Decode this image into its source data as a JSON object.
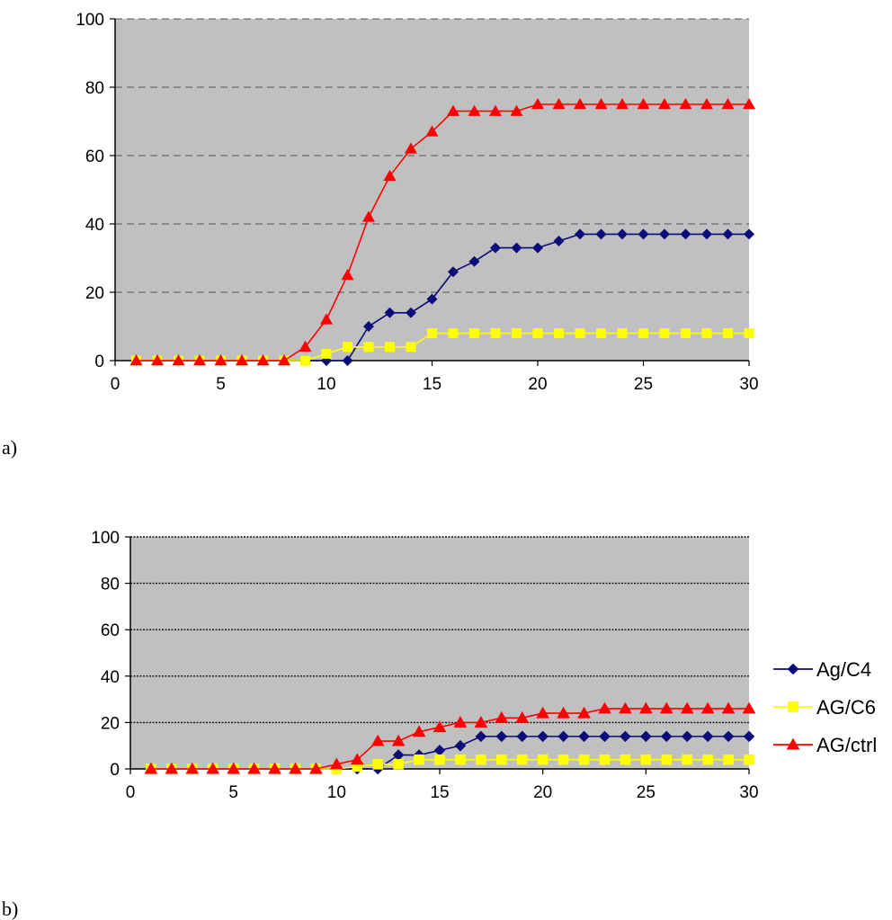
{
  "panel_labels": [
    "a)",
    "b)"
  ],
  "legend": {
    "placement": "right of chart b",
    "entries": [
      "Ag/C4",
      "AG/C6",
      "AG/ctrl"
    ]
  },
  "colors": {
    "plot_background": "#c0c0c0",
    "series": [
      "#0b0b7a",
      "#ffff00",
      "#ff0000"
    ]
  },
  "chart_data": [
    {
      "type": "line",
      "panel": "a)",
      "title": "",
      "xlabel": "",
      "ylabel": "",
      "xlim": [
        0,
        30
      ],
      "ylim": [
        0,
        100
      ],
      "xticks": [
        0,
        5,
        10,
        15,
        20,
        25,
        30
      ],
      "yticks": [
        0,
        20,
        40,
        60,
        80,
        100
      ],
      "grid": "horizontal dashed",
      "x": [
        1,
        2,
        3,
        4,
        5,
        6,
        7,
        8,
        9,
        10,
        11,
        12,
        13,
        14,
        15,
        16,
        17,
        18,
        19,
        20,
        21,
        22,
        23,
        24,
        25,
        26,
        27,
        28,
        29,
        30
      ],
      "series": [
        {
          "name": "Ag/C4",
          "marker": "diamond",
          "values": [
            0,
            0,
            0,
            0,
            0,
            0,
            0,
            0,
            0,
            0,
            0,
            10,
            14,
            14,
            18,
            26,
            29,
            33,
            33,
            33,
            35,
            37,
            37,
            37,
            37,
            37,
            37,
            37,
            37,
            37
          ]
        },
        {
          "name": "AG/C6",
          "marker": "square",
          "values": [
            0,
            0,
            0,
            0,
            0,
            0,
            0,
            0,
            0,
            2,
            4,
            4,
            4,
            4,
            8,
            8,
            8,
            8,
            8,
            8,
            8,
            8,
            8,
            8,
            8,
            8,
            8,
            8,
            8,
            8
          ]
        },
        {
          "name": "AG/ctrl",
          "marker": "triangle",
          "values": [
            0,
            0,
            0,
            0,
            0,
            0,
            0,
            0,
            4,
            12,
            25,
            42,
            54,
            62,
            67,
            73,
            73,
            73,
            73,
            75,
            75,
            75,
            75,
            75,
            75,
            75,
            75,
            75,
            75,
            75
          ]
        }
      ]
    },
    {
      "type": "line",
      "panel": "b)",
      "title": "",
      "xlabel": "",
      "ylabel": "",
      "xlim": [
        0,
        30
      ],
      "ylim": [
        0,
        100
      ],
      "xticks": [
        0,
        5,
        10,
        15,
        20,
        25,
        30
      ],
      "yticks": [
        0,
        20,
        40,
        60,
        80,
        100
      ],
      "grid": "horizontal dotted",
      "x": [
        1,
        2,
        3,
        4,
        5,
        6,
        7,
        8,
        9,
        10,
        11,
        12,
        13,
        14,
        15,
        16,
        17,
        18,
        19,
        20,
        21,
        22,
        23,
        24,
        25,
        26,
        27,
        28,
        29,
        30
      ],
      "series": [
        {
          "name": "Ag/C4",
          "marker": "diamond",
          "values": [
            0,
            0,
            0,
            0,
            0,
            0,
            0,
            0,
            0,
            0,
            0,
            0,
            6,
            6,
            8,
            10,
            14,
            14,
            14,
            14,
            14,
            14,
            14,
            14,
            14,
            14,
            14,
            14,
            14,
            14
          ]
        },
        {
          "name": "AG/C6",
          "marker": "square",
          "values": [
            0,
            0,
            0,
            0,
            0,
            0,
            0,
            0,
            0,
            0,
            1,
            2,
            2,
            4,
            4,
            4,
            4,
            4,
            4,
            4,
            4,
            4,
            4,
            4,
            4,
            4,
            4,
            4,
            4,
            4
          ]
        },
        {
          "name": "AG/ctrl",
          "marker": "triangle",
          "values": [
            0,
            0,
            0,
            0,
            0,
            0,
            0,
            0,
            0,
            2,
            4,
            12,
            12,
            16,
            18,
            20,
            20,
            22,
            22,
            24,
            24,
            24,
            26,
            26,
            26,
            26,
            26,
            26,
            26,
            26
          ]
        }
      ]
    }
  ]
}
